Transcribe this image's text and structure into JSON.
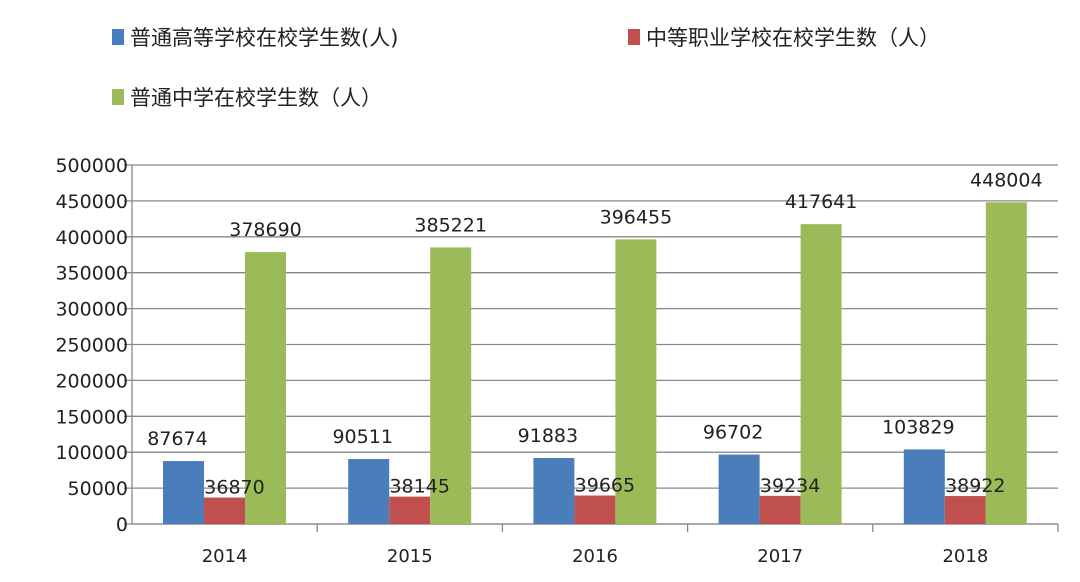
{
  "chart_data": {
    "type": "bar",
    "categories": [
      "2014",
      "2015",
      "2016",
      "2017",
      "2018"
    ],
    "series": [
      {
        "name": "普通高等学校在校学生数(人)",
        "color": "#4a7ebb",
        "values": [
          87674,
          90511,
          91883,
          96702,
          103829
        ]
      },
      {
        "name": "中等职业学校在校学生数（人）",
        "color": "#c0504d",
        "values": [
          36870,
          38145,
          39665,
          39234,
          38922
        ]
      },
      {
        "name": "普通中学在校学生数（人）",
        "color": "#9bbb59",
        "values": [
          378690,
          385221,
          396455,
          417641,
          448004
        ]
      }
    ],
    "ylim": [
      0,
      500000
    ],
    "yticks": [
      0,
      50000,
      100000,
      150000,
      200000,
      250000,
      300000,
      350000,
      400000,
      450000,
      500000
    ],
    "grid": true,
    "legend_placement": "top"
  }
}
